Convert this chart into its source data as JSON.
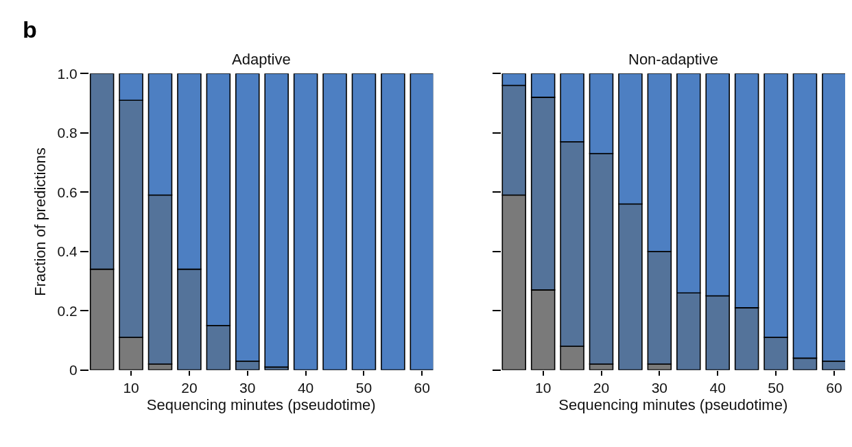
{
  "chart_data": [
    {
      "type": "bar",
      "title": "Adaptive",
      "xlabel": "Sequencing minutes (pseudotime)",
      "ylabel": "Fraction of predictions",
      "annotations": [
        "b"
      ],
      "stacked": true,
      "x": [
        5,
        10,
        15,
        20,
        25,
        30,
        35,
        40,
        45,
        50,
        55,
        60
      ],
      "series": [
        {
          "color": "#7a7a7a",
          "values": [
            0.34,
            0.11,
            0.02,
            0,
            0,
            0,
            0,
            0,
            0,
            0,
            0,
            0
          ]
        },
        {
          "color": "#54739a",
          "values": [
            0.66,
            0.8,
            0.57,
            0.34,
            0.15,
            0.03,
            0.01,
            0,
            0,
            0,
            0,
            0
          ]
        },
        {
          "color": "#4d7fc2",
          "values": [
            0,
            0.09,
            0.41,
            0.66,
            0.85,
            0.97,
            0.99,
            1,
            1,
            1,
            1,
            1
          ]
        }
      ],
      "xlim": [
        2.8,
        61.9
      ],
      "xticks": [
        10,
        20,
        30,
        40,
        50,
        60
      ],
      "ylim": [
        0,
        1
      ],
      "yticks": [
        0,
        {
          "value": 0.2,
          "label": "0.2"
        },
        {
          "value": 0.4,
          "label": "0.4"
        },
        {
          "value": 0.6,
          "label": "0.6"
        },
        {
          "value": 0.8,
          "label": "0.8"
        },
        {
          "value": 1,
          "label": "1.0"
        }
      ]
    },
    {
      "type": "bar",
      "title": "Non-adaptive",
      "xlabel": "Sequencing minutes (pseudotime)",
      "stacked": true,
      "x": [
        5,
        10,
        15,
        20,
        25,
        30,
        35,
        40,
        45,
        50,
        55,
        60
      ],
      "series": [
        {
          "color": "#7a7a7a",
          "values": [
            0.59,
            0.27,
            0.08,
            0.02,
            0,
            0.02,
            0,
            0,
            0,
            0,
            0,
            0
          ]
        },
        {
          "color": "#54739a",
          "values": [
            0.37,
            0.65,
            0.69,
            0.71,
            0.56,
            0.38,
            0.26,
            0.25,
            0.21,
            0.11,
            0.04,
            0.03
          ]
        },
        {
          "color": "#4d7fc2",
          "values": [
            0.04,
            0.08,
            0.23,
            0.27,
            0.44,
            0.6,
            0.74,
            0.75,
            0.79,
            0.89,
            0.96,
            0.97
          ]
        }
      ],
      "xlim": [
        2.8,
        61.9
      ],
      "xticks": [
        10,
        20,
        30,
        40,
        50,
        60
      ],
      "ylim": [
        0,
        1
      ],
      "yticks": [
        {
          "value": 0,
          "label": null
        },
        {
          "value": 0.2,
          "label": null
        },
        {
          "value": 0.4,
          "label": null
        },
        {
          "value": 0.6,
          "label": null
        },
        {
          "value": 0.8,
          "label": null
        },
        {
          "value": 1,
          "label": null
        }
      ],
      "tick_labels": "x"
    }
  ]
}
